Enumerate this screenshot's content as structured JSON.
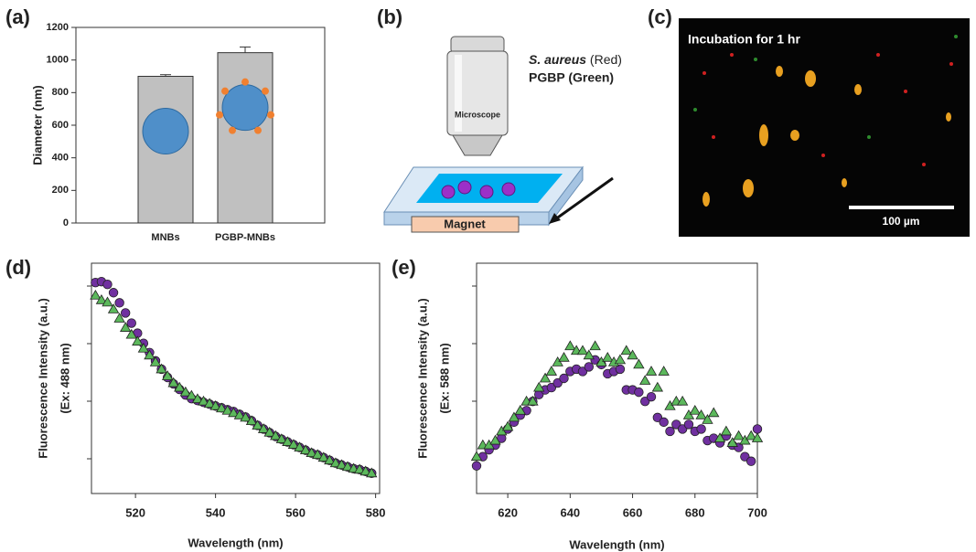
{
  "panel_labels": [
    "(a)",
    "(b)",
    "(c)",
    "(d)",
    "(e)"
  ],
  "diagram": {
    "species": "S. aureus",
    "species_color": "(Red)",
    "probe": "PGBP (Green)",
    "microscope": "Microscope",
    "magnet": "Magnet"
  },
  "micrograph": {
    "caption": "Incubation for 1 hr",
    "scale_bar": "100 µm"
  },
  "chart_data": [
    {
      "type": "bar",
      "categories": [
        "MNBs",
        "PGBP-MNBs"
      ],
      "values": [
        900,
        1045
      ],
      "errors": [
        10,
        35
      ],
      "color": "#c0c0c0",
      "y_label": "Diameter (nm)",
      "ylim": [
        0,
        1200
      ],
      "yticks": [
        0,
        200,
        400,
        600,
        800,
        1000,
        1200
      ]
    },
    {
      "type": "scatter",
      "x_label": "Wavelength (nm)",
      "y_label": [
        "Fluorescence Intensity (a.u.)",
        "(Ex: 488 nm)"
      ],
      "xlim": [
        509,
        581
      ],
      "xticks": [
        520,
        540,
        560,
        580
      ],
      "ylim": [
        0,
        100
      ],
      "x": [
        510,
        511.5,
        513,
        514.5,
        516,
        517.5,
        519,
        520.5,
        522,
        523.5,
        525,
        526.5,
        528,
        529.5,
        531,
        532.5,
        534,
        535.5,
        537,
        538.5,
        540,
        541.5,
        543,
        544.5,
        546,
        547.5,
        549,
        550.5,
        552,
        553.5,
        555,
        556.5,
        558,
        559.5,
        561,
        562.5,
        564,
        565.5,
        567,
        568.5,
        570,
        571.5,
        573,
        574.5,
        576,
        577.5,
        579
      ],
      "series": [
        {
          "marker": "circle",
          "color": "#7030a0",
          "values": [
            91.6,
            92,
            90.8,
            87.2,
            82.8,
            78.4,
            74,
            69.6,
            65.2,
            61.2,
            57.6,
            54,
            50.4,
            47.6,
            45.2,
            42.8,
            41.2,
            40.4,
            39.6,
            38.8,
            38,
            37.2,
            36.4,
            35.6,
            34.4,
            33.2,
            31.6,
            29.6,
            28,
            26.4,
            24.8,
            23.6,
            22.4,
            21.2,
            20,
            18.8,
            17.6,
            16.8,
            15.6,
            14.4,
            13.2,
            12.4,
            11.6,
            10.8,
            10.4,
            9.6,
            8.8
          ]
        },
        {
          "marker": "triangle",
          "color": "#5cb85c",
          "values": [
            86,
            84,
            83,
            80,
            76,
            72,
            69,
            66,
            63,
            60,
            57,
            54,
            51,
            48,
            46,
            44,
            42.5,
            41,
            40,
            39,
            38,
            37,
            36,
            35,
            34,
            33,
            31.5,
            29.5,
            28,
            26.5,
            25,
            23.6,
            22.4,
            21.2,
            20,
            18.8,
            17.6,
            16.8,
            15.6,
            14.4,
            13.2,
            12.4,
            11.6,
            10.8,
            10.4,
            9.6,
            8.8
          ]
        }
      ]
    },
    {
      "type": "scatter",
      "x_label": "Wavelength (nm)",
      "y_label": [
        "Fluorescence Intensity (a.u.)",
        "(Ex: 588 nm)"
      ],
      "xlim": [
        610,
        700
      ],
      "xticks": [
        620,
        640,
        660,
        680,
        700
      ],
      "ylim": [
        0,
        100
      ],
      "x": [
        610,
        612,
        614,
        616,
        618,
        620,
        622,
        624,
        626,
        628,
        630,
        632,
        634,
        636,
        638,
        640,
        642,
        644,
        646,
        648,
        650,
        652,
        654,
        656,
        658,
        660,
        662,
        664,
        666,
        668,
        670,
        672,
        674,
        676,
        678,
        680,
        682,
        684,
        686,
        688,
        690,
        692,
        694,
        696,
        698,
        700
      ],
      "series": [
        {
          "marker": "circle",
          "color": "#7030a0",
          "values": [
            12,
            16,
            19,
            21,
            24,
            28,
            31,
            34,
            36,
            40,
            43,
            45,
            46,
            48,
            50,
            53,
            54,
            53,
            55,
            58,
            56,
            52,
            53,
            54,
            45,
            45,
            44,
            40,
            42,
            33,
            31,
            27,
            30,
            28,
            30,
            27,
            28,
            23,
            24,
            22,
            25,
            21,
            20,
            16,
            14,
            28
          ]
        },
        {
          "marker": "triangle",
          "color": "#5cb85c",
          "values": [
            16,
            21,
            21,
            23,
            27,
            29,
            33,
            36,
            40,
            40,
            46,
            50,
            53,
            57,
            59,
            64,
            62,
            62,
            60,
            64,
            57,
            59,
            57,
            58,
            62,
            60,
            56,
            49,
            53,
            46,
            53,
            38,
            40,
            40,
            34,
            36,
            34,
            32,
            35,
            24,
            27,
            22,
            25,
            23,
            25,
            24
          ]
        }
      ]
    }
  ]
}
